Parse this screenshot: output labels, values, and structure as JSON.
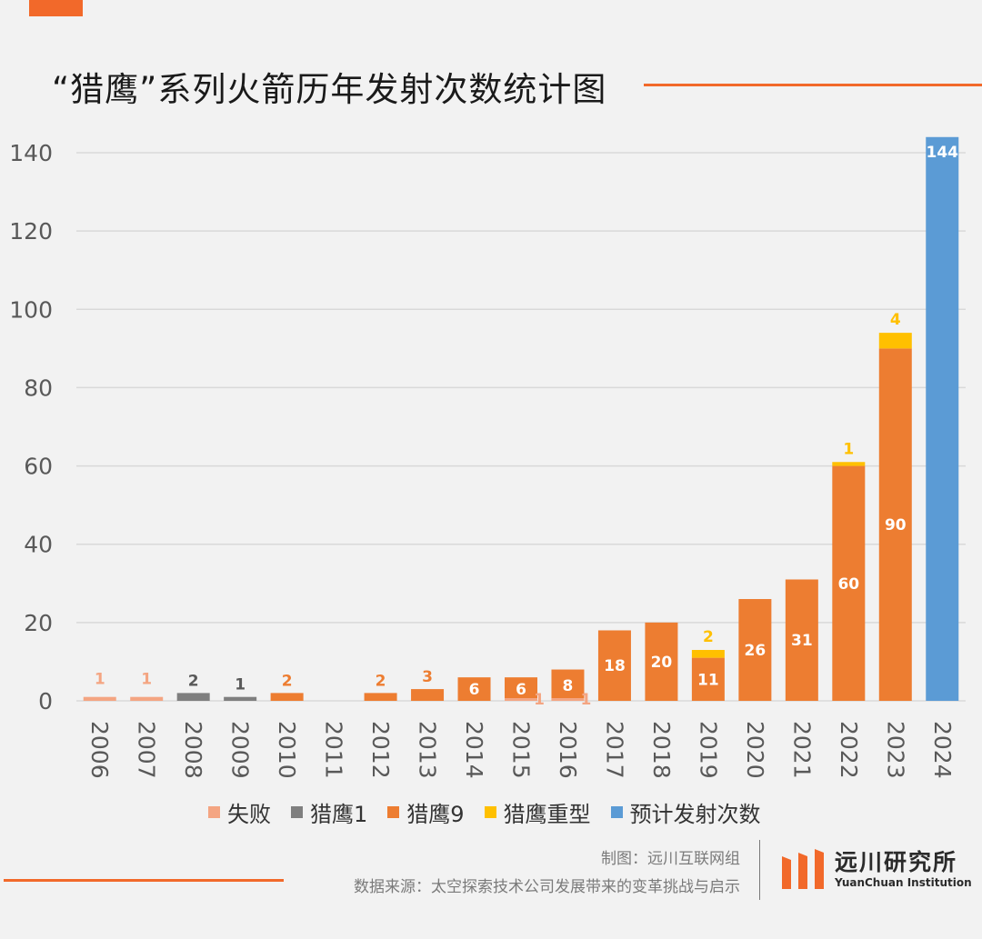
{
  "title": "“猎鹰”系列火箭历年发射次数统计图",
  "colors": {
    "accent": "#f2692a",
    "failure": "#f4a582",
    "falcon1": "#7f7f7f",
    "falcon9": "#ed7d31",
    "falcon_heavy": "#ffc000",
    "forecast": "#5b9bd5",
    "grid": "#d9d9d9"
  },
  "chart_data": {
    "type": "bar",
    "stacked": true,
    "title": "“猎鹰”系列火箭历年发射次数统计图",
    "xlabel": "",
    "ylabel": "",
    "ylim": [
      0,
      140
    ],
    "yticks": [
      0,
      20,
      40,
      60,
      80,
      100,
      120,
      140
    ],
    "grid": true,
    "legend_position": "bottom",
    "categories": [
      "2006",
      "2007",
      "2008",
      "2009",
      "2010",
      "2011",
      "2012",
      "2013",
      "2014",
      "2015",
      "2016",
      "2017",
      "2018",
      "2019",
      "2020",
      "2021",
      "2022",
      "2023",
      "2024"
    ],
    "series": [
      {
        "name": "失败",
        "values": [
          1,
          1,
          0,
          0,
          0,
          0,
          0,
          0,
          0,
          1,
          1,
          0,
          0,
          0,
          0,
          0,
          0,
          0,
          0
        ]
      },
      {
        "name": "猎鹰1",
        "values": [
          0,
          0,
          2,
          1,
          0,
          0,
          0,
          0,
          0,
          0,
          0,
          0,
          0,
          0,
          0,
          0,
          0,
          0,
          0
        ]
      },
      {
        "name": "猎鹰9",
        "values": [
          0,
          0,
          0,
          0,
          2,
          0,
          2,
          3,
          6,
          6,
          8,
          18,
          20,
          11,
          26,
          31,
          60,
          90,
          0
        ]
      },
      {
        "name": "猎鹰重型",
        "values": [
          0,
          0,
          0,
          0,
          0,
          0,
          0,
          0,
          0,
          0,
          0,
          0,
          0,
          2,
          0,
          0,
          1,
          4,
          0
        ]
      },
      {
        "name": "预计发射次数",
        "values": [
          0,
          0,
          0,
          0,
          0,
          0,
          0,
          0,
          0,
          0,
          0,
          0,
          0,
          0,
          0,
          0,
          0,
          0,
          144
        ]
      }
    ]
  },
  "legend": [
    "失败",
    "猎鹰1",
    "猎鹰9",
    "猎鹰重型",
    "预计发射次数"
  ],
  "footer": {
    "credit": "制图：远川互联网组",
    "source": "数据来源：太空探索技术公司发展带来的变革挑战与启示"
  },
  "logo": {
    "name_cn": "远川研究所",
    "name_en": "YuanChuan Institution",
    "icon": "yuanchuan-logo-icon"
  }
}
